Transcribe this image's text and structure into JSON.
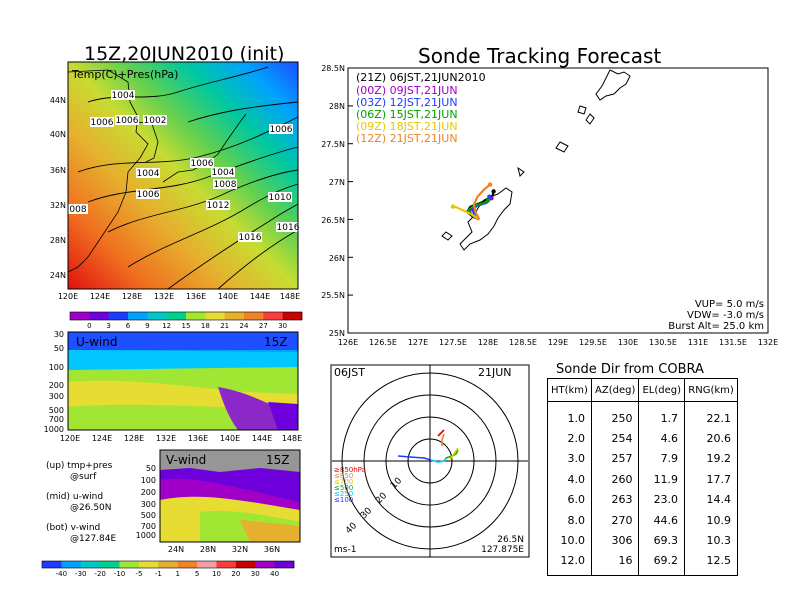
{
  "left": {
    "title": "15Z,20JUN2010 (init)",
    "map": {
      "label": "Temp(C)+Pres(hPa)",
      "lat_ticks": [
        "44N",
        "40N",
        "36N",
        "32N",
        "28N",
        "24N"
      ],
      "lon_ticks": [
        "120E",
        "124E",
        "128E",
        "132E",
        "136E",
        "140E",
        "144E",
        "148E"
      ],
      "isobar_labels": [
        "1004",
        "1006",
        "1006",
        "1002",
        "1006",
        "1006",
        "1004",
        "1004",
        "1008",
        "1006",
        "1012",
        "1010",
        "008",
        "1016",
        "1016"
      ]
    },
    "temp_colorbar": {
      "ticks": [
        "0",
        "3",
        "6",
        "9",
        "12",
        "15",
        "18",
        "21",
        "24",
        "27",
        "30"
      ],
      "colors": [
        "#a000c8",
        "#6e00dc",
        "#1e3cff",
        "#00a0ff",
        "#00c8c8",
        "#00d28c",
        "#a0e632",
        "#e6dc32",
        "#e6af2d",
        "#f08228",
        "#fa3c3c",
        "#c80000"
      ]
    },
    "u_wind": {
      "label": "U-wind",
      "time": "15Z",
      "y_ticks": [
        "30",
        "50",
        "100",
        "200",
        "300",
        "500",
        "700",
        "1000"
      ],
      "x_ticks": [
        "120E",
        "124E",
        "128E",
        "132E",
        "136E",
        "140E",
        "144E",
        "148E"
      ]
    },
    "v_wind": {
      "label": "V-wind",
      "time": "15Z",
      "y_ticks": [
        "50",
        "100",
        "200",
        "300",
        "500",
        "700",
        "1000"
      ],
      "x_ticks": [
        "24N",
        "28N",
        "32N",
        "36N"
      ]
    },
    "notes": [
      {
        "line1": "(up) tmp+pres",
        "line2": "@surf"
      },
      {
        "line1": "(mid) u-wind",
        "line2": "@26.50N"
      },
      {
        "line1": "(bot) v-wind",
        "line2": "@127.84E"
      }
    ],
    "wind_colorbar": {
      "ticks": [
        "-40",
        "-30",
        "-20",
        "-10",
        "-5",
        "-1",
        "1",
        "5",
        "10",
        "20",
        "30",
        "40"
      ],
      "colors": [
        "#1e3cff",
        "#00a0ff",
        "#00c8c8",
        "#00d28c",
        "#a0e632",
        "#e6dc32",
        "#e6af2d",
        "#f08228",
        "#f0a0a0",
        "#fa3c3c",
        "#c80000",
        "#a000c8",
        "#6e00dc"
      ]
    }
  },
  "forecast": {
    "title": "Sonde Tracking Forecast",
    "lat_ticks": [
      "28.5N",
      "28N",
      "27.5N",
      "27N",
      "26.5N",
      "26N",
      "25.5N",
      "25N"
    ],
    "lon_ticks": [
      "126E",
      "126.5E",
      "127E",
      "127.5E",
      "128E",
      "128.5E",
      "129E",
      "129.5E",
      "130E",
      "130.5E",
      "131E",
      "131.5E",
      "132E"
    ],
    "legend": [
      {
        "text": "(21Z)  06JST,21JUN2010",
        "color": "#000000"
      },
      {
        "text": "(00Z)  09JST,21JUN",
        "color": "#a000c8"
      },
      {
        "text": "(03Z)  12JST,21JUN",
        "color": "#1e3cff"
      },
      {
        "text": "(06Z)  15JST,21JUN",
        "color": "#00a000"
      },
      {
        "text": "(09Z)  18JST,21JUN",
        "color": "#e6c800"
      },
      {
        "text": "(12Z)  21JST,21JUN",
        "color": "#f08228"
      }
    ],
    "params": [
      "VUP=  5.0  m/s",
      "VDW= -3.0  m/s",
      "Burst Alt=  25.0  km"
    ]
  },
  "polar": {
    "left_label": "06JST",
    "right_label": "21JUN",
    "range_labels": [
      "10",
      "20",
      "30",
      "40"
    ],
    "pressure_legend": [
      {
        "text": "≥850hPa",
        "color": "#e60000"
      },
      {
        "text": "≤850",
        "color": "#f08228"
      },
      {
        "text": "≤700",
        "color": "#e6c800"
      },
      {
        "text": "≤500",
        "color": "#00b400"
      },
      {
        "text": "≤250",
        "color": "#00c8ff"
      },
      {
        "text": "≤100",
        "color": "#1e3cff"
      }
    ],
    "unit": "ms-1",
    "coord_lat": "26.5N",
    "coord_lon": "127.875E"
  },
  "table": {
    "title": "Sonde Dir from COBRA",
    "headers": [
      "HT(km)",
      "AZ(deg)",
      "EL(deg)",
      "RNG(km)"
    ],
    "rows": [
      [
        "1.0",
        "250",
        "1.7",
        "22.1"
      ],
      [
        "2.0",
        "254",
        "4.6",
        "20.6"
      ],
      [
        "3.0",
        "257",
        "7.9",
        "19.2"
      ],
      [
        "4.0",
        "260",
        "11.9",
        "17.7"
      ],
      [
        "6.0",
        "263",
        "23.0",
        "14.4"
      ],
      [
        "8.0",
        "270",
        "44.6",
        "10.9"
      ],
      [
        "10.0",
        "306",
        "69.3",
        "10.3"
      ],
      [
        "12.0",
        "16",
        "69.2",
        "12.5"
      ]
    ]
  },
  "chart_data": [
    {
      "type": "heatmap",
      "title": "15Z,20JUN2010 (init)",
      "label": "Temp(C)+Pres(hPa)",
      "x_ticks": [
        "120E",
        "124E",
        "128E",
        "132E",
        "136E",
        "140E",
        "144E",
        "148E"
      ],
      "y_ticks": [
        "44N",
        "40N",
        "36N",
        "32N",
        "28N",
        "24N"
      ],
      "colorbar_ticks": [
        0,
        3,
        6,
        9,
        12,
        15,
        18,
        21,
        24,
        27,
        30
      ],
      "isobar_labels": [
        1004,
        1006,
        1006,
        1002,
        1006,
        1006,
        1004,
        1004,
        1008,
        1006,
        1012,
        1010,
        1016,
        1016
      ]
    },
    {
      "type": "heatmap",
      "label": "U-wind",
      "time": "15Z",
      "y_ticks": [
        30,
        50,
        100,
        200,
        300,
        500,
        700,
        1000
      ],
      "x_ticks": [
        "120E",
        "124E",
        "128E",
        "132E",
        "136E",
        "140E",
        "144E",
        "148E"
      ],
      "note": "@26.50N"
    },
    {
      "type": "heatmap",
      "label": "V-wind",
      "time": "15Z",
      "y_ticks": [
        50,
        100,
        200,
        300,
        500,
        700,
        1000
      ],
      "x_ticks": [
        "24N",
        "28N",
        "32N",
        "36N"
      ],
      "note": "@127.84E"
    },
    {
      "type": "line",
      "title": "Sonde Tracking Forecast",
      "xlim": [
        126,
        132
      ],
      "ylim": [
        25,
        28.5
      ],
      "launch": [
        127.875,
        26.5
      ],
      "series": [
        {
          "name": "(21Z)  06JST,21JUN2010",
          "color": "#000000",
          "x": [
            127.875,
            127.78,
            127.7,
            127.75,
            127.9,
            128.06,
            128.08
          ],
          "y": [
            26.5,
            26.54,
            26.6,
            26.67,
            26.72,
            26.8,
            26.87
          ]
        },
        {
          "name": "(00Z)  09JST,21JUN",
          "color": "#a000c8",
          "x": [
            127.875,
            127.8,
            127.74,
            127.78,
            127.95,
            128.05
          ],
          "y": [
            26.5,
            26.53,
            26.6,
            26.67,
            26.72,
            26.78
          ]
        },
        {
          "name": "(03Z)  12JST,21JUN",
          "color": "#1e3cff",
          "x": [
            127.875,
            127.82,
            127.78,
            127.84,
            127.98,
            128.02
          ],
          "y": [
            26.5,
            26.54,
            26.62,
            26.68,
            26.72,
            26.8
          ]
        },
        {
          "name": "(06Z)  15JST,21JUN",
          "color": "#00a000",
          "x": [
            127.875,
            127.78,
            127.72,
            127.8,
            127.95,
            128.0
          ],
          "y": [
            26.5,
            26.55,
            26.62,
            26.68,
            26.72,
            26.75
          ]
        },
        {
          "name": "(09Z)  18JST,21JUN",
          "color": "#e6c800",
          "x": [
            127.875,
            127.78,
            127.62,
            127.55,
            127.5
          ],
          "y": [
            26.5,
            26.56,
            26.63,
            26.66,
            26.67
          ]
        },
        {
          "name": "(12Z)  21JST,21JUN",
          "color": "#f08228",
          "x": [
            127.875,
            127.82,
            127.8,
            127.85,
            127.95,
            128.03
          ],
          "y": [
            26.5,
            26.6,
            26.7,
            26.8,
            26.9,
            26.96
          ]
        }
      ]
    },
    {
      "type": "table",
      "title": "Sonde Dir from COBRA",
      "columns": [
        "HT(km)",
        "AZ(deg)",
        "EL(deg)",
        "RNG(km)"
      ],
      "rows": [
        [
          1.0,
          250,
          1.7,
          22.1
        ],
        [
          2.0,
          254,
          4.6,
          20.6
        ],
        [
          3.0,
          257,
          7.9,
          19.2
        ],
        [
          4.0,
          260,
          11.9,
          17.7
        ],
        [
          6.0,
          263,
          23.0,
          14.4
        ],
        [
          8.0,
          270,
          44.6,
          10.9
        ],
        [
          10.0,
          306,
          69.3,
          10.3
        ],
        [
          12.0,
          16,
          69.2,
          12.5
        ]
      ]
    }
  ]
}
